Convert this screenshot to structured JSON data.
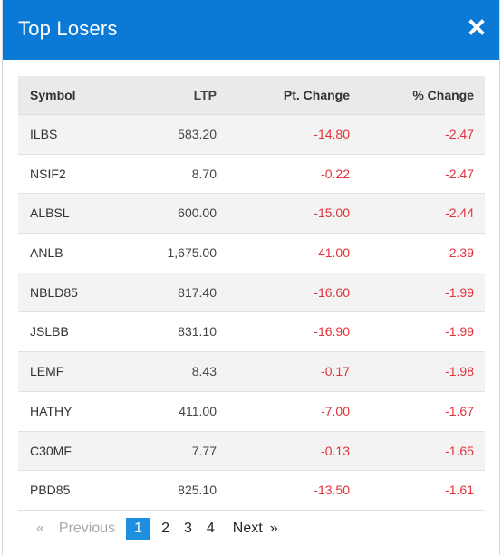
{
  "modal": {
    "title": "Top Losers",
    "close_icon": "close-icon"
  },
  "table": {
    "headers": {
      "symbol": "Symbol",
      "ltp": "LTP",
      "pt_change": "Pt. Change",
      "pct_change": "% Change"
    },
    "rows": [
      {
        "symbol": "ILBS",
        "ltp": "583.20",
        "pt_change": "-14.80",
        "pct_change": "-2.47"
      },
      {
        "symbol": "NSIF2",
        "ltp": "8.70",
        "pt_change": "-0.22",
        "pct_change": "-2.47"
      },
      {
        "symbol": "ALBSL",
        "ltp": "600.00",
        "pt_change": "-15.00",
        "pct_change": "-2.44"
      },
      {
        "symbol": "ANLB",
        "ltp": "1,675.00",
        "pt_change": "-41.00",
        "pct_change": "-2.39"
      },
      {
        "symbol": "NBLD85",
        "ltp": "817.40",
        "pt_change": "-16.60",
        "pct_change": "-1.99"
      },
      {
        "symbol": "JSLBB",
        "ltp": "831.10",
        "pt_change": "-16.90",
        "pct_change": "-1.99"
      },
      {
        "symbol": "LEMF",
        "ltp": "8.43",
        "pt_change": "-0.17",
        "pct_change": "-1.98"
      },
      {
        "symbol": "HATHY",
        "ltp": "411.00",
        "pt_change": "-7.00",
        "pct_change": "-1.67"
      },
      {
        "symbol": "C30MF",
        "ltp": "7.77",
        "pt_change": "-0.13",
        "pct_change": "-1.65"
      },
      {
        "symbol": "PBD85",
        "ltp": "825.10",
        "pt_change": "-13.50",
        "pct_change": "-1.61"
      }
    ]
  },
  "pagination": {
    "prev_arrow": "«",
    "previous": "Previous",
    "pages": [
      "1",
      "2",
      "3",
      "4"
    ],
    "current": "1",
    "next": "Next",
    "next_arrow": "»"
  },
  "colors": {
    "header_bg": "#0b7ad6",
    "negative": "#e2333a",
    "active_page": "#1e8fe0"
  }
}
